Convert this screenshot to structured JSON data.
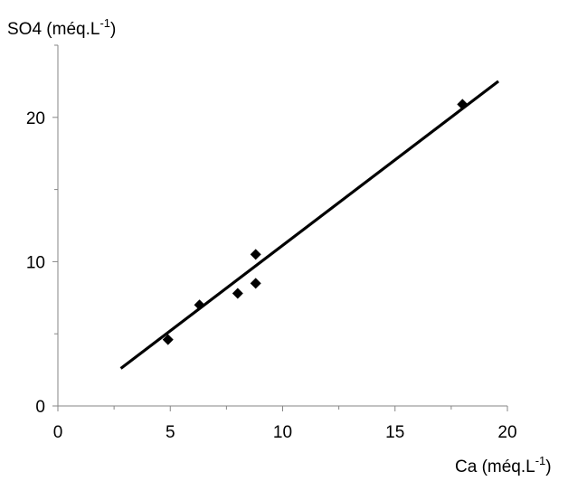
{
  "chart_data": {
    "type": "scatter",
    "title": "",
    "xlabel": "Ca (méq.L-1)",
    "ylabel": "SO4 (méq.L-1)",
    "xlabel_parts": {
      "base": "Ca (méq.L",
      "sup": "-1",
      "close": ")"
    },
    "ylabel_parts": {
      "base": "SO4 (méq.L",
      "sup": "-1",
      "close": ")"
    },
    "xlim": [
      0,
      20
    ],
    "ylim": [
      0,
      25
    ],
    "x_ticks": [
      0,
      5,
      10,
      15,
      20
    ],
    "y_ticks": [
      0,
      10,
      20
    ],
    "grid": false,
    "legend": "none",
    "marker": "diamond",
    "marker_color": "#000000",
    "series": [
      {
        "points": [
          {
            "x": 4.9,
            "y": 4.6
          },
          {
            "x": 6.3,
            "y": 7.0
          },
          {
            "x": 8.0,
            "y": 7.8
          },
          {
            "x": 8.8,
            "y": 8.5
          },
          {
            "x": 8.8,
            "y": 10.5
          },
          {
            "x": 18.0,
            "y": 20.9
          }
        ]
      }
    ],
    "trendline": {
      "type": "linear",
      "from": {
        "x": 2.8,
        "y": 2.6
      },
      "to": {
        "x": 19.6,
        "y": 22.5
      },
      "color": "#000000"
    }
  }
}
